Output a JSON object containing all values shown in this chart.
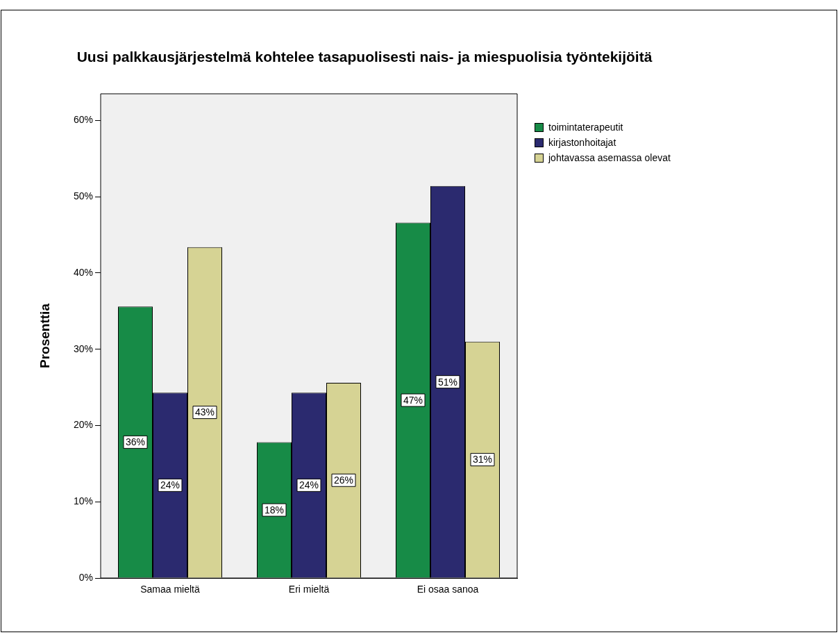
{
  "chart_data": {
    "type": "bar",
    "title": "Uusi palkkausjärjestelmä kohtelee tasapuolisesti nais- ja miespuolisia työntekijöitä",
    "ylabel": "Prosenttia",
    "categories": [
      "Samaa mieltä",
      "Eri mieltä",
      "Ei osaa sanoa"
    ],
    "series": [
      {
        "name": "toimintaterapeutit",
        "color": "#178b47",
        "values": [
          35.6,
          17.8,
          46.6
        ],
        "value_labels": [
          "36%",
          "18%",
          "47%"
        ]
      },
      {
        "name": "kirjastonhoitajat",
        "color": "#2b2a6f",
        "values": [
          24.3,
          24.3,
          51.4
        ],
        "value_labels": [
          "24%",
          "24%",
          "51%"
        ]
      },
      {
        "name": "johtavassa asemassa olevat",
        "color": "#d6d394",
        "values": [
          43.4,
          25.6,
          31.0
        ],
        "value_labels": [
          "43%",
          "26%",
          "31%"
        ]
      }
    ],
    "ylim": [
      0,
      63.5
    ],
    "yticks": [
      {
        "value": 0,
        "label": "0%"
      },
      {
        "value": 10,
        "label": "10%"
      },
      {
        "value": 20,
        "label": "20%"
      },
      {
        "value": 30,
        "label": "30%"
      },
      {
        "value": 40,
        "label": "40%"
      },
      {
        "value": 50,
        "label": "50%"
      },
      {
        "value": 60,
        "label": "60%"
      }
    ],
    "grid": false,
    "legend": "right"
  }
}
